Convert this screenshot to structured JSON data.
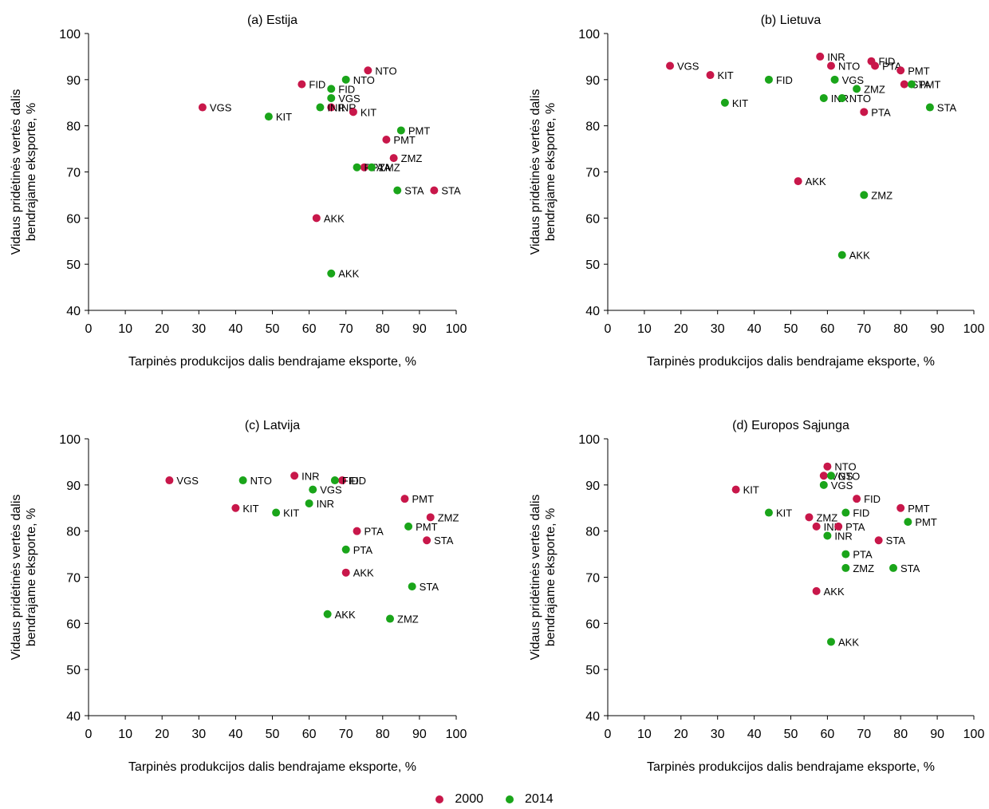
{
  "legend": {
    "items": [
      {
        "label": "2000",
        "color": "#c8174a"
      },
      {
        "label": "2014",
        "color": "#1aa51a"
      }
    ]
  },
  "chart_data": [
    {
      "type": "scatter",
      "title": "(a) Estija",
      "xlabel": "Tarpinės produkcijos dalis bendrajame eksporte, %",
      "ylabel_lines": [
        "Vidaus pridėtinės vertės dalis",
        "bendrajame eksporte, %"
      ],
      "xlim": [
        0,
        100
      ],
      "ylim": [
        40,
        100
      ],
      "xticks": [
        "0",
        "10",
        "20",
        "30",
        "40",
        "50",
        "60",
        "70",
        "80",
        "90",
        "100"
      ],
      "yticks": [
        "40",
        "50",
        "60",
        "70",
        "80",
        "90",
        "100"
      ],
      "series": [
        {
          "name": "2000",
          "color": "#c8174a",
          "points": [
            {
              "label": "VGS",
              "x": 31,
              "y": 84
            },
            {
              "label": "FID",
              "x": 58,
              "y": 89
            },
            {
              "label": "INR",
              "x": 66,
              "y": 84
            },
            {
              "label": "KIT",
              "x": 72,
              "y": 83
            },
            {
              "label": "NTO",
              "x": 76,
              "y": 92
            },
            {
              "label": "PMT",
              "x": 81,
              "y": 77
            },
            {
              "label": "ZMZ",
              "x": 83,
              "y": 73
            },
            {
              "label": "PTA",
              "x": 75,
              "y": 71
            },
            {
              "label": "STA",
              "x": 94,
              "y": 66
            },
            {
              "label": "AKK",
              "x": 62,
              "y": 60
            }
          ]
        },
        {
          "name": "2014",
          "color": "#1aa51a",
          "points": [
            {
              "label": "KIT",
              "x": 49,
              "y": 82
            },
            {
              "label": "INR",
              "x": 63,
              "y": 84
            },
            {
              "label": "FID",
              "x": 66,
              "y": 88
            },
            {
              "label": "VGS",
              "x": 66,
              "y": 86
            },
            {
              "label": "NTO",
              "x": 70,
              "y": 90
            },
            {
              "label": "PMT",
              "x": 85,
              "y": 79
            },
            {
              "label": "PTA",
              "x": 73,
              "y": 71
            },
            {
              "label": "ZMZ",
              "x": 77,
              "y": 71
            },
            {
              "label": "STA",
              "x": 84,
              "y": 66
            },
            {
              "label": "AKK",
              "x": 66,
              "y": 48
            }
          ]
        }
      ]
    },
    {
      "type": "scatter",
      "title": "(b) Lietuva",
      "xlabel": "Tarpinės produkcijos dalis bendrajame eksporte, %",
      "ylabel_lines": [
        "Vidaus pridėtinės vertės dalis",
        "bendrajame eksporte, %"
      ],
      "xlim": [
        0,
        100
      ],
      "ylim": [
        40,
        100
      ],
      "xticks": [
        "0",
        "10",
        "20",
        "30",
        "40",
        "50",
        "60",
        "70",
        "80",
        "90",
        "100"
      ],
      "yticks": [
        "40",
        "50",
        "60",
        "70",
        "80",
        "90",
        "100"
      ],
      "series": [
        {
          "name": "2000",
          "color": "#c8174a",
          "points": [
            {
              "label": "VGS",
              "x": 17,
              "y": 93
            },
            {
              "label": "KIT",
              "x": 28,
              "y": 91
            },
            {
              "label": "INR",
              "x": 58,
              "y": 95
            },
            {
              "label": "NTO",
              "x": 61,
              "y": 93
            },
            {
              "label": "FID",
              "x": 72,
              "y": 94
            },
            {
              "label": "PTA",
              "x": 73,
              "y": 93
            },
            {
              "label": "PMT",
              "x": 80,
              "y": 92
            },
            {
              "label": "STA",
              "x": 81,
              "y": 89
            },
            {
              "label": "PTA",
              "x": 70,
              "y": 83
            },
            {
              "label": "AKK",
              "x": 52,
              "y": 68
            }
          ]
        },
        {
          "name": "2014",
          "color": "#1aa51a",
          "points": [
            {
              "label": "FID",
              "x": 44,
              "y": 90
            },
            {
              "label": "KIT",
              "x": 32,
              "y": 85
            },
            {
              "label": "VGS",
              "x": 62,
              "y": 90
            },
            {
              "label": "INR",
              "x": 59,
              "y": 86
            },
            {
              "label": "NTO",
              "x": 64,
              "y": 86
            },
            {
              "label": "ZMZ",
              "x": 68,
              "y": 88
            },
            {
              "label": "PMT",
              "x": 83,
              "y": 89
            },
            {
              "label": "STA",
              "x": 88,
              "y": 84
            },
            {
              "label": "ZMZ",
              "x": 70,
              "y": 65
            },
            {
              "label": "AKK",
              "x": 64,
              "y": 52
            }
          ]
        }
      ]
    },
    {
      "type": "scatter",
      "title": "(c) Latvija",
      "xlabel": "Tarpinės produkcijos dalis bendrajame eksporte, %",
      "ylabel_lines": [
        "Vidaus pridėtinės vertės dalis",
        "bendrajame eksporte, %"
      ],
      "xlim": [
        0,
        100
      ],
      "ylim": [
        40,
        100
      ],
      "xticks": [
        "0",
        "10",
        "20",
        "30",
        "40",
        "50",
        "60",
        "70",
        "80",
        "90",
        "100"
      ],
      "yticks": [
        "40",
        "50",
        "60",
        "70",
        "80",
        "90",
        "100"
      ],
      "series": [
        {
          "name": "2000",
          "color": "#c8174a",
          "points": [
            {
              "label": "VGS",
              "x": 22,
              "y": 91
            },
            {
              "label": "KIT",
              "x": 40,
              "y": 85
            },
            {
              "label": "INR",
              "x": 56,
              "y": 92
            },
            {
              "label": "FID",
              "x": 69,
              "y": 91
            },
            {
              "label": "PMT",
              "x": 86,
              "y": 87
            },
            {
              "label": "ZMZ",
              "x": 93,
              "y": 83
            },
            {
              "label": "STA",
              "x": 92,
              "y": 78
            },
            {
              "label": "PTA",
              "x": 73,
              "y": 80
            },
            {
              "label": "AKK",
              "x": 70,
              "y": 71
            }
          ]
        },
        {
          "name": "2014",
          "color": "#1aa51a",
          "points": [
            {
              "label": "NTO",
              "x": 42,
              "y": 91
            },
            {
              "label": "KIT",
              "x": 51,
              "y": 84
            },
            {
              "label": "VGS",
              "x": 61,
              "y": 89
            },
            {
              "label": "INR",
              "x": 60,
              "y": 86
            },
            {
              "label": "FID",
              "x": 67,
              "y": 91
            },
            {
              "label": "PMT",
              "x": 87,
              "y": 81
            },
            {
              "label": "PTA",
              "x": 70,
              "y": 76
            },
            {
              "label": "STA",
              "x": 88,
              "y": 68
            },
            {
              "label": "AKK",
              "x": 65,
              "y": 62
            },
            {
              "label": "ZMZ",
              "x": 82,
              "y": 61
            }
          ]
        }
      ]
    },
    {
      "type": "scatter",
      "title": "(d) Europos Sąjunga",
      "xlabel": "Tarpinės produkcijos dalis bendrajame eksporte, %",
      "ylabel_lines": [
        "Vidaus pridėtinės vertės dalis",
        "bendrajame eksporte, %"
      ],
      "xlim": [
        0,
        100
      ],
      "ylim": [
        40,
        100
      ],
      "xticks": [
        "0",
        "10",
        "20",
        "30",
        "40",
        "50",
        "60",
        "70",
        "80",
        "90",
        "100"
      ],
      "yticks": [
        "40",
        "50",
        "60",
        "70",
        "80",
        "90",
        "100"
      ],
      "series": [
        {
          "name": "2000",
          "color": "#c8174a",
          "points": [
            {
              "label": "NTO",
              "x": 60,
              "y": 94
            },
            {
              "label": "VGS",
              "x": 59,
              "y": 92
            },
            {
              "label": "KIT",
              "x": 35,
              "y": 89
            },
            {
              "label": "FID",
              "x": 68,
              "y": 87
            },
            {
              "label": "PMT",
              "x": 80,
              "y": 85
            },
            {
              "label": "ZMZ",
              "x": 55,
              "y": 83
            },
            {
              "label": "INR",
              "x": 57,
              "y": 81
            },
            {
              "label": "PTA",
              "x": 63,
              "y": 81
            },
            {
              "label": "STA",
              "x": 74,
              "y": 78
            },
            {
              "label": "AKK",
              "x": 57,
              "y": 67
            }
          ]
        },
        {
          "name": "2014",
          "color": "#1aa51a",
          "points": [
            {
              "label": "NTO",
              "x": 61,
              "y": 92
            },
            {
              "label": "VGS",
              "x": 59,
              "y": 90
            },
            {
              "label": "KIT",
              "x": 44,
              "y": 84
            },
            {
              "label": "FID",
              "x": 65,
              "y": 84
            },
            {
              "label": "PMT",
              "x": 82,
              "y": 82
            },
            {
              "label": "INR",
              "x": 60,
              "y": 79
            },
            {
              "label": "PTA",
              "x": 65,
              "y": 75
            },
            {
              "label": "ZMZ",
              "x": 65,
              "y": 72
            },
            {
              "label": "STA",
              "x": 78,
              "y": 72
            },
            {
              "label": "AKK",
              "x": 61,
              "y": 56
            }
          ]
        }
      ]
    }
  ]
}
